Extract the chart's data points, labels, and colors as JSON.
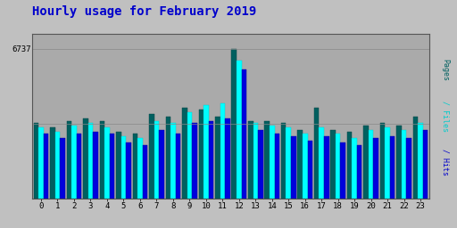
{
  "title": "Hourly usage for February 2019",
  "title_color": "#0000cc",
  "title_fontsize": 10,
  "hours": [
    0,
    1,
    2,
    3,
    4,
    5,
    6,
    7,
    8,
    9,
    10,
    11,
    12,
    13,
    14,
    15,
    16,
    17,
    18,
    19,
    20,
    21,
    22,
    23
  ],
  "pages": [
    3400,
    3200,
    3500,
    3600,
    3500,
    3000,
    2900,
    3800,
    3700,
    4100,
    4000,
    3700,
    6737,
    3500,
    3500,
    3400,
    3100,
    4100,
    3100,
    3000,
    3300,
    3400,
    3300,
    3700
  ],
  "files": [
    3200,
    3000,
    3300,
    3400,
    3200,
    2800,
    2700,
    3500,
    3400,
    3900,
    4200,
    4300,
    6200,
    3400,
    3300,
    3200,
    2900,
    3200,
    2900,
    2700,
    3100,
    3200,
    3100,
    3400
  ],
  "hits": [
    2900,
    2700,
    2900,
    3000,
    2900,
    2500,
    2400,
    3100,
    2900,
    3400,
    3500,
    3600,
    5800,
    3100,
    2900,
    2800,
    2600,
    2800,
    2500,
    2400,
    2700,
    2800,
    2700,
    3100
  ],
  "ytick_label": "6737",
  "ytick_value": 6737,
  "ymax": 7400,
  "bg_color": "#c0c0c0",
  "plot_bg": "#aaaaaa",
  "bar_color_pages": "#006060",
  "bar_color_files": "#00ffff",
  "bar_color_hits": "#0000dd",
  "bar_edge_pages": "#004040",
  "bar_edge_files": "#00cccc",
  "bar_edge_hits": "#000099",
  "ylabel_pages_color": "#006060",
  "ylabel_files_color": "#00cccc",
  "ylabel_hits_color": "#0000cc",
  "grid_color": "#888888",
  "border_color": "#555555",
  "ylabel_text": "Pages / Files / Hits"
}
